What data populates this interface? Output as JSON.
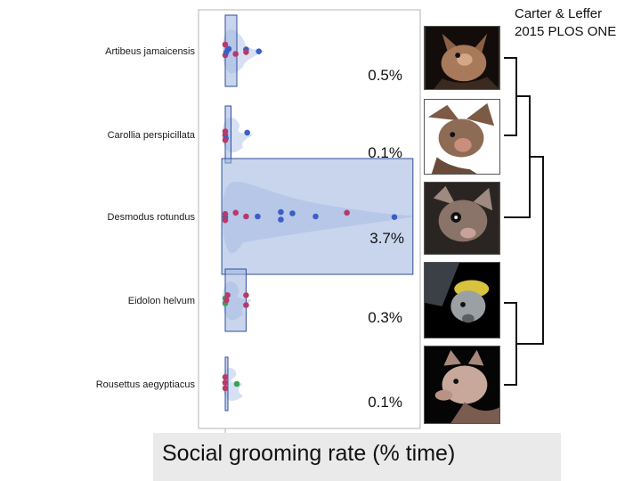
{
  "citation": {
    "line1": "Carter & Leffer",
    "line2": "2015 PLOS ONE"
  },
  "chart_data": {
    "type": "box",
    "orientation": "horizontal",
    "xlabel": "Social grooming rate (% time)",
    "xlim": [
      0,
      16.5
    ],
    "categories": [
      "Artibeus jamaicensis",
      "Carollia perspicillata",
      "Desmodus rotundus",
      "Eidolon helvum",
      "Rousettus aegyptiacus"
    ],
    "mean_labels": [
      "0.5%",
      "0.1%",
      "3.7%",
      "0.3%",
      "0.1%"
    ],
    "boxes": [
      {
        "q1": 0.0,
        "q3": 1.0
      },
      {
        "q1": 0.0,
        "q3": 0.5
      },
      {
        "q1": -0.3,
        "q3": 16.2
      },
      {
        "q1": 0.0,
        "q3": 1.8
      },
      {
        "q1": 0.0,
        "q3": 0.15
      }
    ],
    "points": [
      [
        {
          "v": 0.0,
          "c": "red",
          "dy": -1.0
        },
        {
          "v": 0.0,
          "c": "red",
          "dy": 0.7
        },
        {
          "v": 0.1,
          "c": "blue",
          "dy": 0.2
        },
        {
          "v": 0.3,
          "c": "blue",
          "dy": -0.3
        },
        {
          "v": 0.9,
          "c": "red",
          "dy": 0.5
        },
        {
          "v": 1.8,
          "c": "blue",
          "dy": -0.2
        },
        {
          "v": 1.8,
          "c": "red",
          "dy": 0.2
        },
        {
          "v": 2.9,
          "c": "blue",
          "dy": 0.1
        }
      ],
      [
        {
          "v": 0.0,
          "c": "red",
          "dy": -0.5
        },
        {
          "v": 0.0,
          "c": "red",
          "dy": 0.1
        },
        {
          "v": 0.05,
          "c": "blue",
          "dy": 0.6
        },
        {
          "v": 0.0,
          "c": "red",
          "dy": 0.9
        },
        {
          "v": 1.9,
          "c": "blue",
          "dy": -0.3
        }
      ],
      [
        {
          "v": 0.0,
          "c": "blue",
          "dy": 0.1
        },
        {
          "v": 0.0,
          "c": "red",
          "dy": -0.4
        },
        {
          "v": 0.0,
          "c": "red",
          "dy": 0.6
        },
        {
          "v": 0.9,
          "c": "red",
          "dy": -0.6
        },
        {
          "v": 1.8,
          "c": "red",
          "dy": 0.0
        },
        {
          "v": 2.8,
          "c": "blue",
          "dy": 0.0
        },
        {
          "v": 4.8,
          "c": "blue",
          "dy": -0.7
        },
        {
          "v": 4.8,
          "c": "blue",
          "dy": 0.5
        },
        {
          "v": 5.8,
          "c": "blue",
          "dy": -0.5
        },
        {
          "v": 7.8,
          "c": "blue",
          "dy": 0.0
        },
        {
          "v": 10.5,
          "c": "red",
          "dy": -0.6
        },
        {
          "v": 14.6,
          "c": "blue",
          "dy": 0.1
        }
      ],
      [
        {
          "v": 0.0,
          "c": "green",
          "dy": -0.3
        },
        {
          "v": 0.0,
          "c": "green",
          "dy": 0.5
        },
        {
          "v": 0.1,
          "c": "red",
          "dy": 0.0
        },
        {
          "v": 0.2,
          "c": "red",
          "dy": -0.8
        },
        {
          "v": 1.8,
          "c": "red",
          "dy": -0.8
        },
        {
          "v": 1.8,
          "c": "red",
          "dy": 0.8
        }
      ],
      [
        {
          "v": 0.0,
          "c": "red",
          "dy": -1.1
        },
        {
          "v": 0.0,
          "c": "red",
          "dy": -0.2
        },
        {
          "v": 0.0,
          "c": "red",
          "dy": 0.7
        },
        {
          "v": 1.0,
          "c": "green",
          "dy": 0.0
        }
      ]
    ],
    "colors": {
      "blue": "#3c5fc4",
      "red": "#b63a6a",
      "green": "#33a457",
      "box": "#9cb3df",
      "box_edge": "#2f4f9a",
      "violin": "#c6d3ee"
    }
  }
}
